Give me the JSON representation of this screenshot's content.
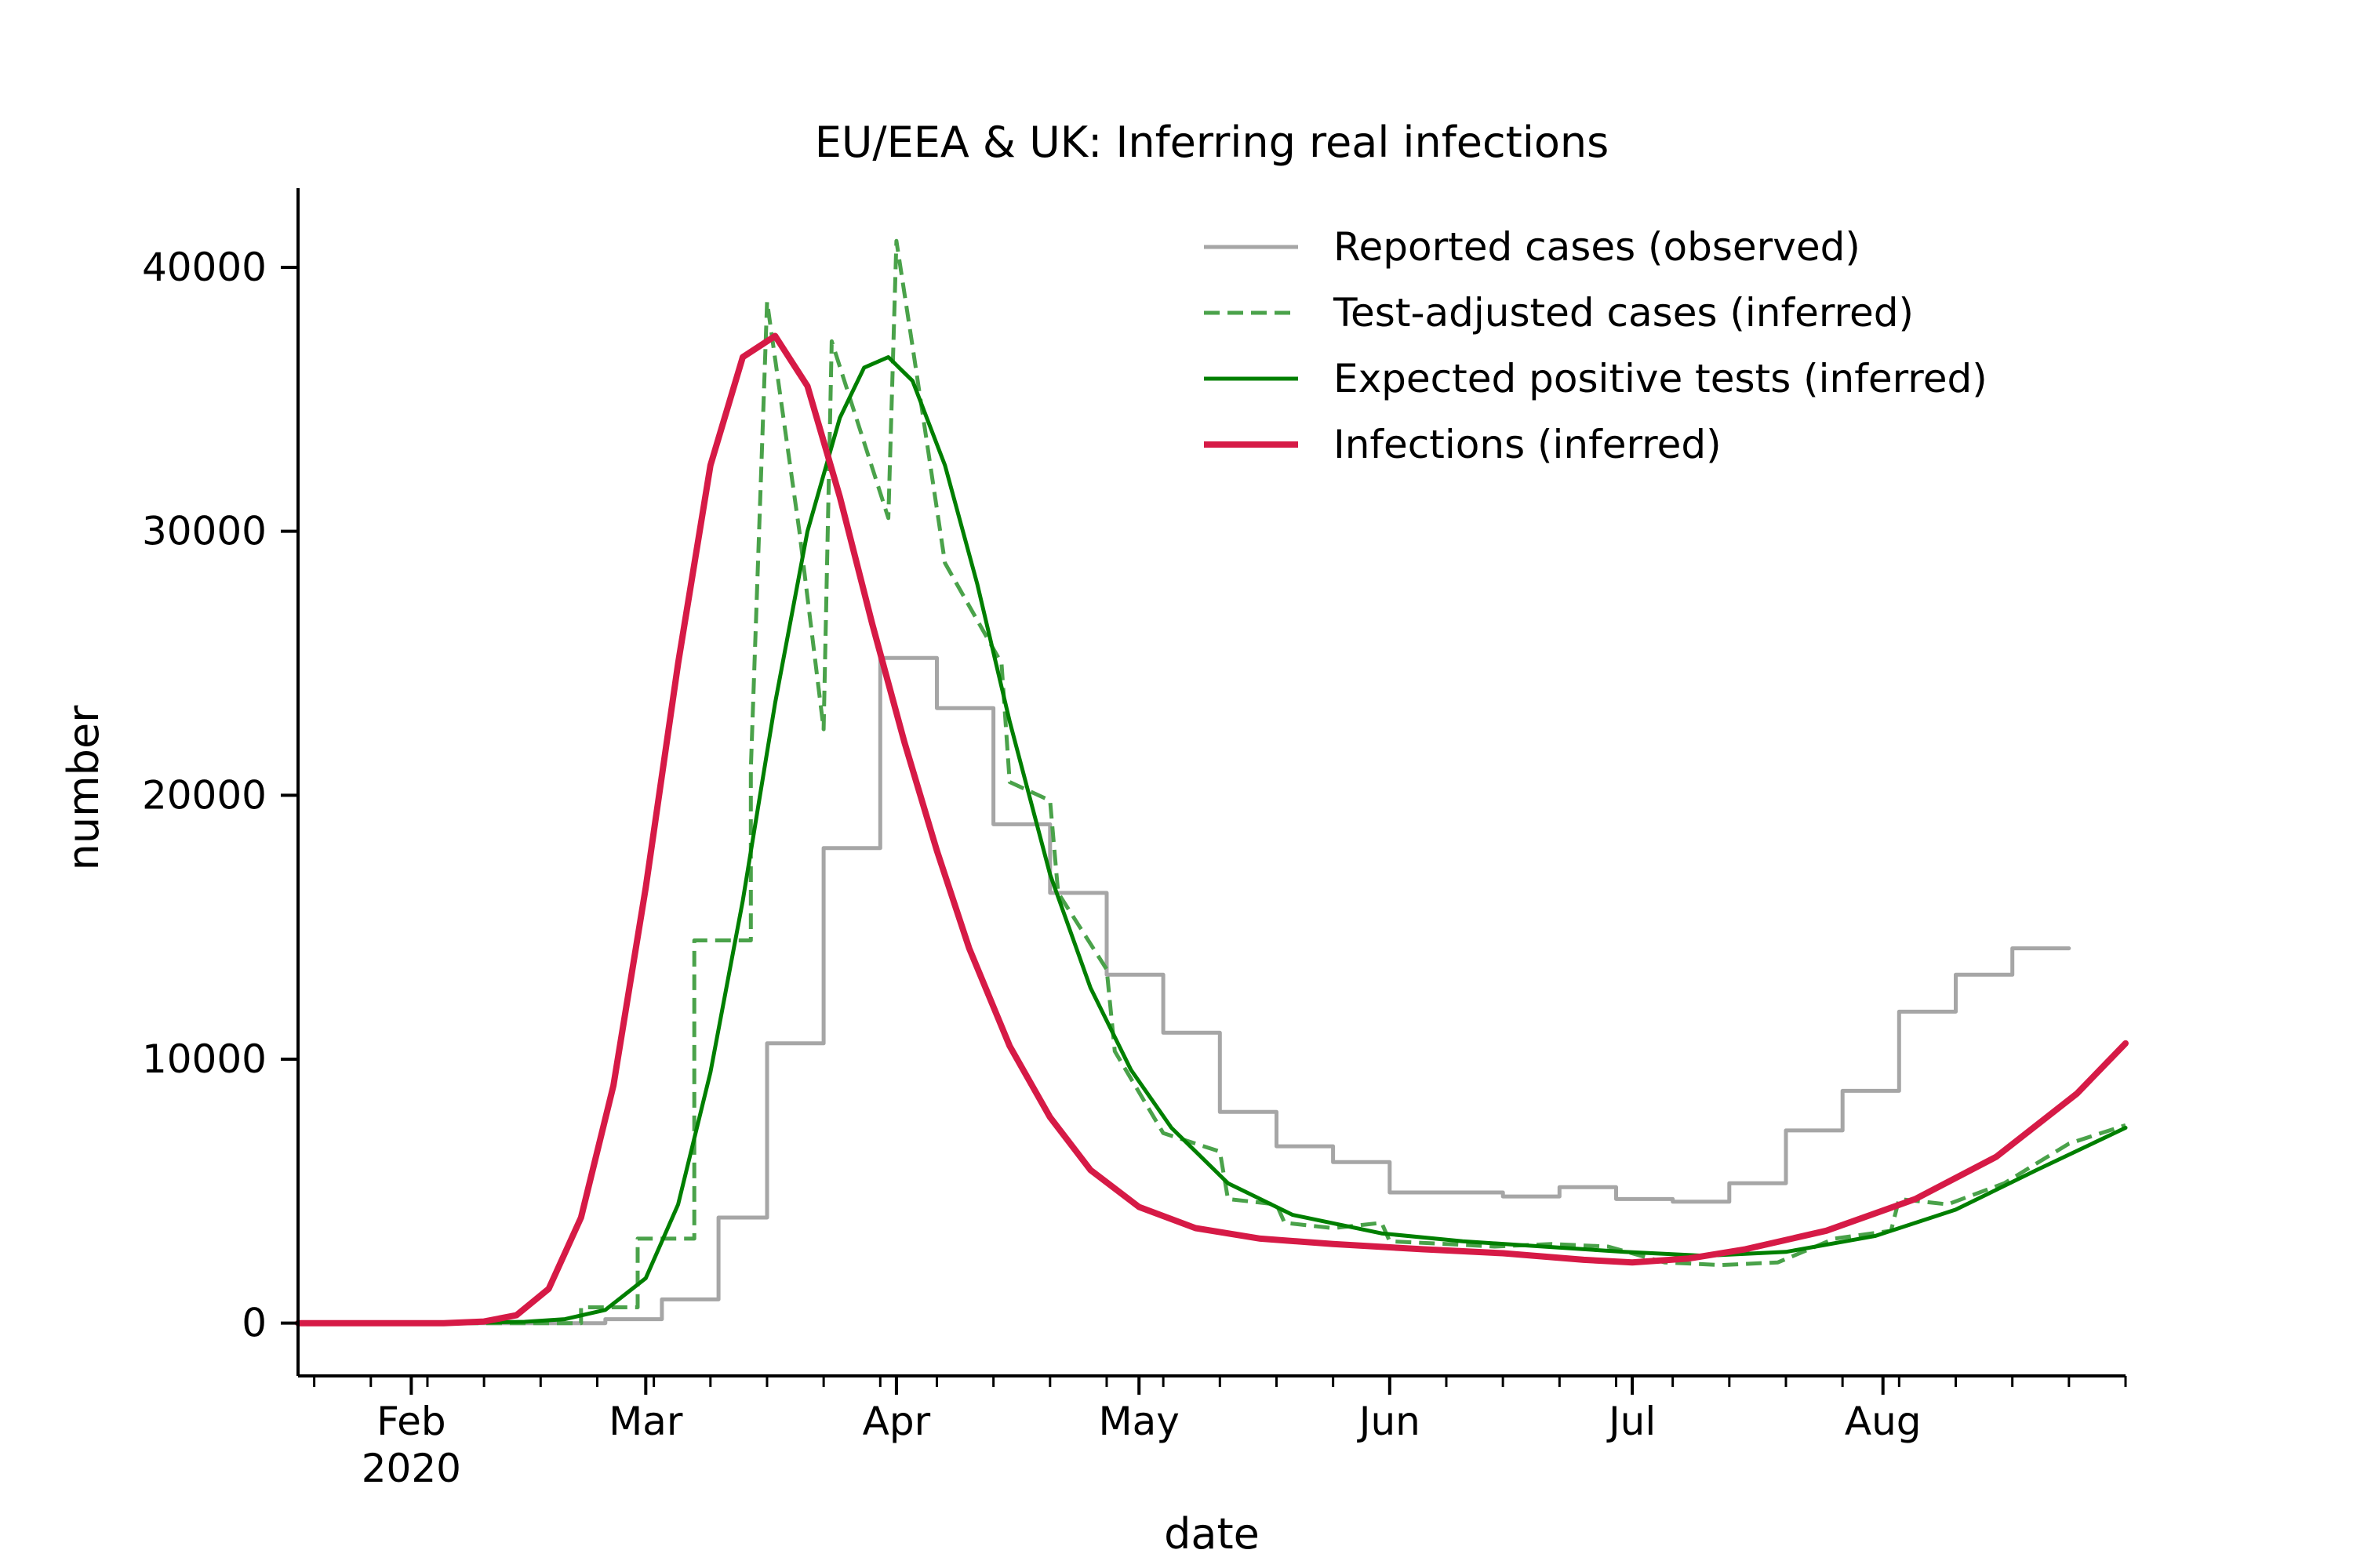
{
  "chart_data": {
    "type": "line",
    "title": "EU/EEA & UK: Inferring real infections",
    "xlabel": "date",
    "ylabel": "number",
    "xlim": [
      "2020-01-18",
      "2020-08-31"
    ],
    "ylim": [
      -2000,
      43000
    ],
    "yticks": [
      0,
      10000,
      20000,
      30000,
      40000
    ],
    "ytick_labels": [
      "0",
      "10000",
      "20000",
      "30000",
      "40000"
    ],
    "xticks_major": [
      {
        "date": "2020-02-01",
        "label": "Feb",
        "sublabel": "2020"
      },
      {
        "date": "2020-03-01",
        "label": "Mar",
        "sublabel": ""
      },
      {
        "date": "2020-04-01",
        "label": "Apr",
        "sublabel": ""
      },
      {
        "date": "2020-05-01",
        "label": "May",
        "sublabel": ""
      },
      {
        "date": "2020-06-01",
        "label": "Jun",
        "sublabel": ""
      },
      {
        "date": "2020-07-01",
        "label": "Jul",
        "sublabel": ""
      },
      {
        "date": "2020-08-01",
        "label": "Aug",
        "sublabel": ""
      }
    ],
    "grid": false,
    "legend_position": "top-right",
    "series": [
      {
        "name": "Reported cases (observed)",
        "color": "#a6a6a6",
        "style": "step",
        "points": [
          [
            "2020-01-18",
            0
          ],
          [
            "2020-02-25",
            0
          ],
          [
            "2020-02-25",
            150
          ],
          [
            "2020-03-03",
            150
          ],
          [
            "2020-03-03",
            900
          ],
          [
            "2020-03-10",
            900
          ],
          [
            "2020-03-10",
            4000
          ],
          [
            "2020-03-16",
            4000
          ],
          [
            "2020-03-16",
            10600
          ],
          [
            "2020-03-23",
            10600
          ],
          [
            "2020-03-23",
            18000
          ],
          [
            "2020-03-30",
            18000
          ],
          [
            "2020-03-30",
            25200
          ],
          [
            "2020-04-06",
            25200
          ],
          [
            "2020-04-06",
            23300
          ],
          [
            "2020-04-13",
            23300
          ],
          [
            "2020-04-13",
            18900
          ],
          [
            "2020-04-20",
            18900
          ],
          [
            "2020-04-20",
            16300
          ],
          [
            "2020-04-27",
            16300
          ],
          [
            "2020-04-27",
            13200
          ],
          [
            "2020-05-04",
            13200
          ],
          [
            "2020-05-04",
            11000
          ],
          [
            "2020-05-11",
            11000
          ],
          [
            "2020-05-11",
            8000
          ],
          [
            "2020-05-18",
            8000
          ],
          [
            "2020-05-18",
            6700
          ],
          [
            "2020-05-25",
            6700
          ],
          [
            "2020-05-25",
            6100
          ],
          [
            "2020-06-01",
            6100
          ],
          [
            "2020-06-01",
            4950
          ],
          [
            "2020-06-15",
            4950
          ],
          [
            "2020-06-15",
            4800
          ],
          [
            "2020-06-22",
            4800
          ],
          [
            "2020-06-22",
            5150
          ],
          [
            "2020-06-29",
            5150
          ],
          [
            "2020-06-29",
            4700
          ],
          [
            "2020-07-06",
            4700
          ],
          [
            "2020-07-06",
            4600
          ],
          [
            "2020-07-13",
            4600
          ],
          [
            "2020-07-13",
            5300
          ],
          [
            "2020-07-20",
            5300
          ],
          [
            "2020-07-20",
            7300
          ],
          [
            "2020-07-27",
            7300
          ],
          [
            "2020-07-27",
            8800
          ],
          [
            "2020-08-03",
            8800
          ],
          [
            "2020-08-03",
            11800
          ],
          [
            "2020-08-10",
            11800
          ],
          [
            "2020-08-10",
            13200
          ],
          [
            "2020-08-17",
            13200
          ],
          [
            "2020-08-17",
            14200
          ],
          [
            "2020-08-24",
            14200
          ]
        ]
      },
      {
        "name": "Test-adjusted cases (inferred)",
        "color": "#4aa24a",
        "style": "dashed",
        "points": [
          [
            "2020-01-18",
            0
          ],
          [
            "2020-02-22",
            0
          ],
          [
            "2020-02-22",
            600
          ],
          [
            "2020-02-29",
            600
          ],
          [
            "2020-02-29",
            3200
          ],
          [
            "2020-03-07",
            3200
          ],
          [
            "2020-03-07",
            14500
          ],
          [
            "2020-03-14",
            14500
          ],
          [
            "2020-03-14",
            21000
          ],
          [
            "2020-03-16",
            38700
          ],
          [
            "2020-03-20",
            30000
          ],
          [
            "2020-03-23",
            22500
          ],
          [
            "2020-03-24",
            37200
          ],
          [
            "2020-03-31",
            30500
          ],
          [
            "2020-04-01",
            41000
          ],
          [
            "2020-04-03",
            37000
          ],
          [
            "2020-04-07",
            28800
          ],
          [
            "2020-04-14",
            25000
          ],
          [
            "2020-04-15",
            20500
          ],
          [
            "2020-04-20",
            19800
          ],
          [
            "2020-04-21",
            16300
          ],
          [
            "2020-04-27",
            13400
          ],
          [
            "2020-04-28",
            10300
          ],
          [
            "2020-05-04",
            7200
          ],
          [
            "2020-05-11",
            6500
          ],
          [
            "2020-05-12",
            4700
          ],
          [
            "2020-05-18",
            4500
          ],
          [
            "2020-05-19",
            3800
          ],
          [
            "2020-05-25",
            3600
          ],
          [
            "2020-05-31",
            3800
          ],
          [
            "2020-06-01",
            3100
          ],
          [
            "2020-06-08",
            3000
          ],
          [
            "2020-06-14",
            2900
          ],
          [
            "2020-06-21",
            3000
          ],
          [
            "2020-06-28",
            2900
          ],
          [
            "2020-07-05",
            2300
          ],
          [
            "2020-07-12",
            2200
          ],
          [
            "2020-07-19",
            2300
          ],
          [
            "2020-07-26",
            3200
          ],
          [
            "2020-08-02",
            3500
          ],
          [
            "2020-08-03",
            4700
          ],
          [
            "2020-08-09",
            4500
          ],
          [
            "2020-08-16",
            5300
          ],
          [
            "2020-08-24",
            6800
          ],
          [
            "2020-08-31",
            7500
          ]
        ]
      },
      {
        "name": "Expected positive tests (inferred)",
        "color": "#007f00",
        "style": "solid",
        "points": [
          [
            "2020-01-18",
            0
          ],
          [
            "2020-02-05",
            0
          ],
          [
            "2020-02-15",
            50
          ],
          [
            "2020-02-20",
            150
          ],
          [
            "2020-02-25",
            500
          ],
          [
            "2020-03-01",
            1700
          ],
          [
            "2020-03-05",
            4500
          ],
          [
            "2020-03-09",
            9500
          ],
          [
            "2020-03-13",
            16000
          ],
          [
            "2020-03-17",
            23500
          ],
          [
            "2020-03-21",
            30000
          ],
          [
            "2020-03-25",
            34300
          ],
          [
            "2020-03-28",
            36200
          ],
          [
            "2020-03-31",
            36600
          ],
          [
            "2020-04-03",
            35700
          ],
          [
            "2020-04-07",
            32500
          ],
          [
            "2020-04-11",
            28000
          ],
          [
            "2020-04-15",
            22800
          ],
          [
            "2020-04-20",
            17000
          ],
          [
            "2020-04-25",
            12700
          ],
          [
            "2020-04-30",
            9600
          ],
          [
            "2020-05-05",
            7400
          ],
          [
            "2020-05-12",
            5300
          ],
          [
            "2020-05-20",
            4100
          ],
          [
            "2020-05-31",
            3400
          ],
          [
            "2020-06-10",
            3100
          ],
          [
            "2020-06-20",
            2900
          ],
          [
            "2020-06-30",
            2700
          ],
          [
            "2020-07-10",
            2550
          ],
          [
            "2020-07-20",
            2700
          ],
          [
            "2020-07-31",
            3300
          ],
          [
            "2020-08-10",
            4300
          ],
          [
            "2020-08-20",
            5800
          ],
          [
            "2020-08-31",
            7400
          ]
        ]
      },
      {
        "name": "Infections (inferred)",
        "color": "#d61a46",
        "style": "solid-thick",
        "points": [
          [
            "2020-01-18",
            0
          ],
          [
            "2020-02-05",
            0
          ],
          [
            "2020-02-10",
            60
          ],
          [
            "2020-02-14",
            300
          ],
          [
            "2020-02-18",
            1300
          ],
          [
            "2020-02-22",
            4000
          ],
          [
            "2020-02-26",
            9000
          ],
          [
            "2020-03-01",
            16500
          ],
          [
            "2020-03-05",
            25000
          ],
          [
            "2020-03-09",
            32500
          ],
          [
            "2020-03-13",
            36600
          ],
          [
            "2020-03-17",
            37400
          ],
          [
            "2020-03-21",
            35500
          ],
          [
            "2020-03-25",
            31300
          ],
          [
            "2020-03-29",
            26500
          ],
          [
            "2020-04-02",
            22000
          ],
          [
            "2020-04-06",
            17900
          ],
          [
            "2020-04-10",
            14200
          ],
          [
            "2020-04-15",
            10500
          ],
          [
            "2020-04-20",
            7800
          ],
          [
            "2020-04-25",
            5800
          ],
          [
            "2020-05-01",
            4400
          ],
          [
            "2020-05-08",
            3600
          ],
          [
            "2020-05-16",
            3200
          ],
          [
            "2020-05-25",
            3000
          ],
          [
            "2020-06-05",
            2800
          ],
          [
            "2020-06-15",
            2650
          ],
          [
            "2020-06-25",
            2400
          ],
          [
            "2020-07-01",
            2300
          ],
          [
            "2020-07-08",
            2450
          ],
          [
            "2020-07-15",
            2800
          ],
          [
            "2020-07-25",
            3500
          ],
          [
            "2020-08-05",
            4700
          ],
          [
            "2020-08-15",
            6300
          ],
          [
            "2020-08-25",
            8700
          ],
          [
            "2020-08-31",
            10600
          ]
        ]
      }
    ]
  }
}
